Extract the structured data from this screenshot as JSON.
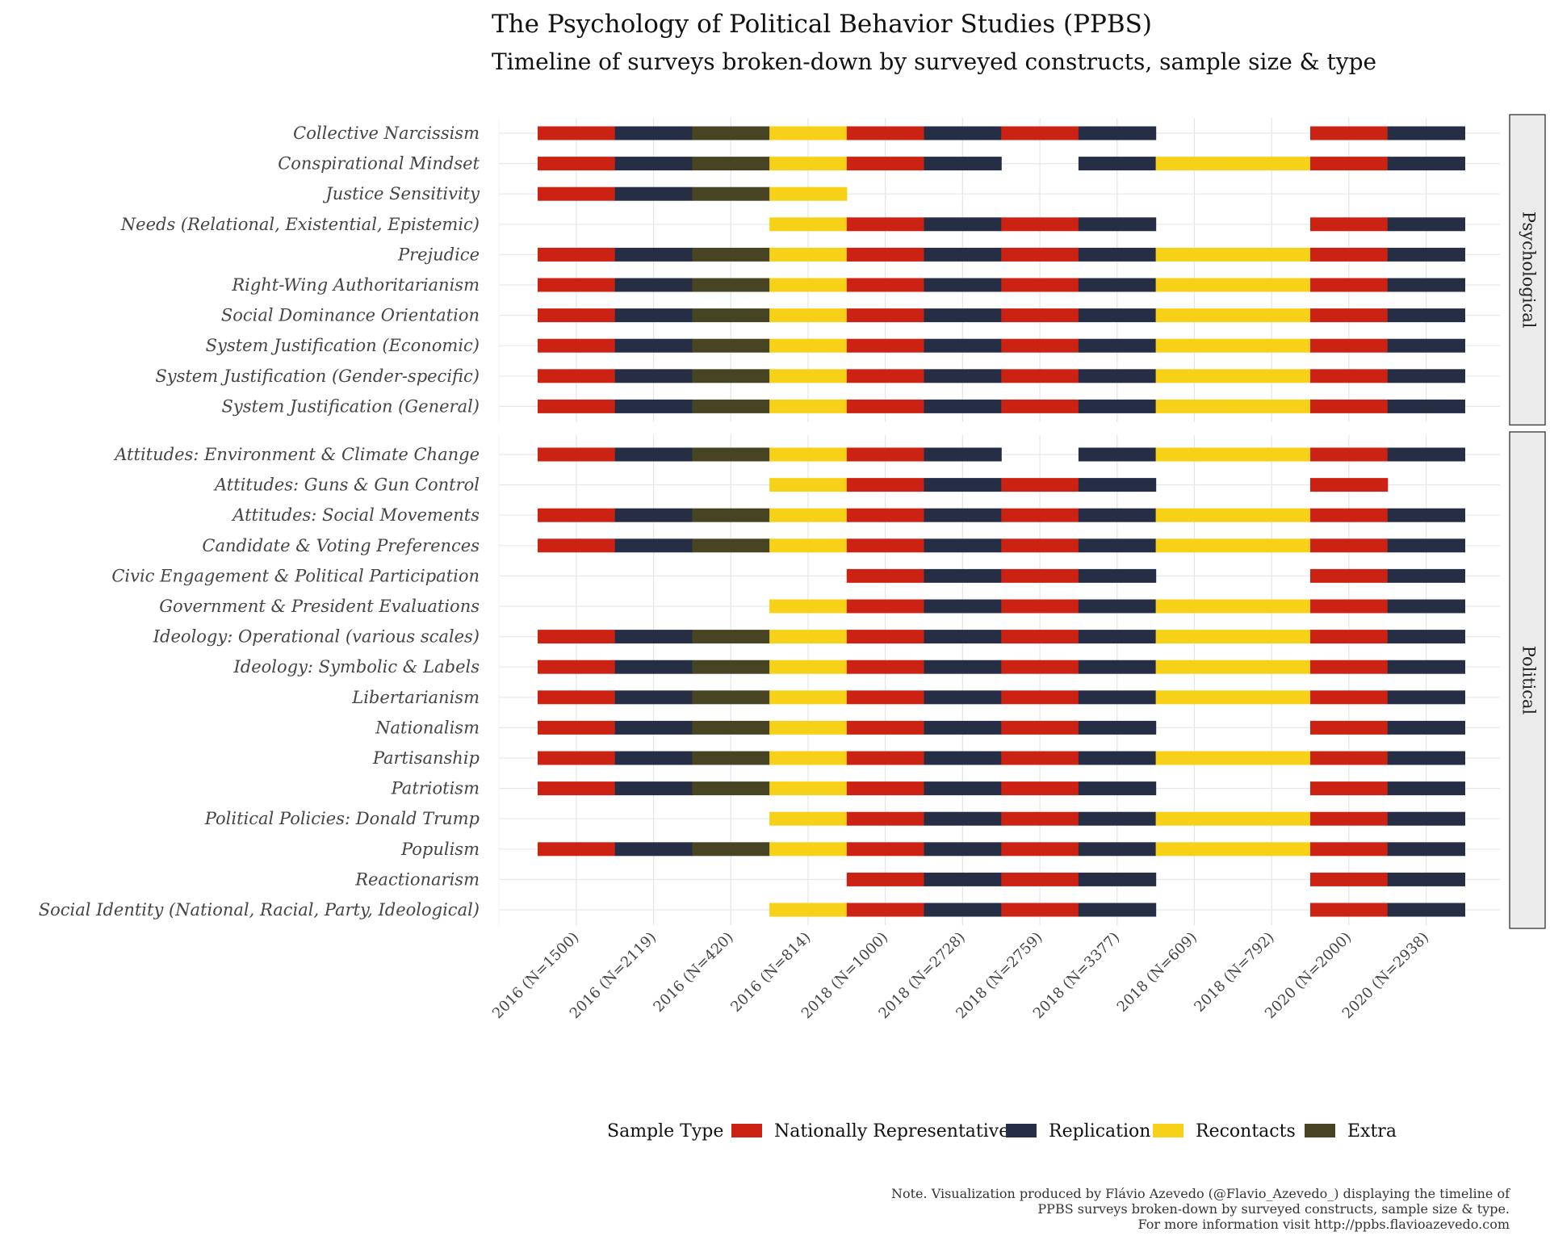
{
  "chart_data": {
    "type": "bar",
    "title": "The Psychology of Political Behavior Studies (PPBS)",
    "subtitle": "Timeline of surveys broken-down by surveyed constructs, sample size & type",
    "categories": [
      "2016 (N=1500)",
      "2016 (N=2119)",
      "2016 (N=420)",
      "2016 (N=814)",
      "2018 (N=1000)",
      "2018 (N=2728)",
      "2018 (N=2759)",
      "2018 (N=3377)",
      "2018 (N=609)",
      "2018 (N=792)",
      "2020 (N=2000)",
      "2020 (N=2938)"
    ],
    "legend": {
      "title": "Sample Type",
      "position": "bottom",
      "items": [
        {
          "label": "Nationally Representative",
          "color": "#cc2214"
        },
        {
          "label": "Replication",
          "color": "#252e45"
        },
        {
          "label": "Recontacts",
          "color": "#f7d117"
        },
        {
          "label": "Extra",
          "color": "#474423"
        }
      ]
    },
    "survey_types": [
      "Nationally Representative",
      "Replication",
      "Extra",
      "Recontacts",
      "Nationally Representative",
      "Replication",
      "Nationally Representative",
      "Replication",
      "Recontacts",
      "Recontacts",
      "Nationally Representative",
      "Replication"
    ],
    "panels": [
      {
        "name": "Psychological",
        "rows": [
          {
            "label": "Collective Narcissism",
            "present": [
              1,
              1,
              1,
              1,
              1,
              1,
              1,
              1,
              0,
              0,
              1,
              1
            ]
          },
          {
            "label": "Conspirational Mindset",
            "present": [
              1,
              1,
              1,
              1,
              1,
              1,
              0,
              1,
              1,
              1,
              1,
              1
            ]
          },
          {
            "label": "Justice Sensitivity",
            "present": [
              1,
              1,
              1,
              1,
              0,
              0,
              0,
              0,
              0,
              0,
              0,
              0
            ]
          },
          {
            "label": "Needs (Relational, Existential, Epistemic)",
            "present": [
              0,
              0,
              0,
              1,
              1,
              1,
              1,
              1,
              0,
              0,
              1,
              1
            ]
          },
          {
            "label": "Prejudice",
            "present": [
              1,
              1,
              1,
              1,
              1,
              1,
              1,
              1,
              1,
              1,
              1,
              1
            ]
          },
          {
            "label": "Right-Wing Authoritarianism",
            "present": [
              1,
              1,
              1,
              1,
              1,
              1,
              1,
              1,
              1,
              1,
              1,
              1
            ]
          },
          {
            "label": "Social Dominance Orientation",
            "present": [
              1,
              1,
              1,
              1,
              1,
              1,
              1,
              1,
              1,
              1,
              1,
              1
            ]
          },
          {
            "label": "System Justification (Economic)",
            "present": [
              1,
              1,
              1,
              1,
              1,
              1,
              1,
              1,
              1,
              1,
              1,
              1
            ]
          },
          {
            "label": "System Justification (Gender-specific)",
            "present": [
              1,
              1,
              1,
              1,
              1,
              1,
              1,
              1,
              1,
              1,
              1,
              1
            ]
          },
          {
            "label": "System Justification (General)",
            "present": [
              1,
              1,
              1,
              1,
              1,
              1,
              1,
              1,
              1,
              1,
              1,
              1
            ]
          }
        ]
      },
      {
        "name": "Political",
        "rows": [
          {
            "label": "Attitudes: Environment & Climate Change",
            "present": [
              1,
              1,
              1,
              1,
              1,
              1,
              0,
              1,
              1,
              1,
              1,
              1
            ]
          },
          {
            "label": "Attitudes: Guns & Gun Control",
            "present": [
              0,
              0,
              0,
              1,
              1,
              1,
              1,
              1,
              0,
              0,
              1,
              0
            ]
          },
          {
            "label": "Attitudes: Social Movements",
            "present": [
              1,
              1,
              1,
              1,
              1,
              1,
              1,
              1,
              1,
              1,
              1,
              1
            ]
          },
          {
            "label": "Candidate & Voting Preferences",
            "present": [
              1,
              1,
              1,
              1,
              1,
              1,
              1,
              1,
              1,
              1,
              1,
              1
            ]
          },
          {
            "label": "Civic Engagement & Political Participation",
            "present": [
              0,
              0,
              0,
              0,
              1,
              1,
              1,
              1,
              0,
              0,
              1,
              1
            ]
          },
          {
            "label": "Government & President Evaluations",
            "present": [
              0,
              0,
              0,
              1,
              1,
              1,
              1,
              1,
              1,
              1,
              1,
              1
            ]
          },
          {
            "label": "Ideology: Operational (various scales)",
            "present": [
              1,
              1,
              1,
              1,
              1,
              1,
              1,
              1,
              1,
              1,
              1,
              1
            ]
          },
          {
            "label": "Ideology: Symbolic & Labels",
            "present": [
              1,
              1,
              1,
              1,
              1,
              1,
              1,
              1,
              1,
              1,
              1,
              1
            ]
          },
          {
            "label": "Libertarianism",
            "present": [
              1,
              1,
              1,
              1,
              1,
              1,
              1,
              1,
              1,
              1,
              1,
              1
            ]
          },
          {
            "label": "Nationalism",
            "present": [
              1,
              1,
              1,
              1,
              1,
              1,
              1,
              1,
              0,
              0,
              1,
              1
            ]
          },
          {
            "label": "Partisanship",
            "present": [
              1,
              1,
              1,
              1,
              1,
              1,
              1,
              1,
              1,
              1,
              1,
              1
            ]
          },
          {
            "label": "Patriotism",
            "present": [
              1,
              1,
              1,
              1,
              1,
              1,
              1,
              1,
              0,
              0,
              1,
              1
            ]
          },
          {
            "label": "Political Policies: Donald Trump",
            "present": [
              0,
              0,
              0,
              1,
              1,
              1,
              1,
              1,
              1,
              1,
              1,
              1
            ]
          },
          {
            "label": "Populism",
            "present": [
              1,
              1,
              1,
              1,
              1,
              1,
              1,
              1,
              1,
              1,
              1,
              1
            ]
          },
          {
            "label": "Reactionarism",
            "present": [
              0,
              0,
              0,
              0,
              1,
              1,
              1,
              1,
              0,
              0,
              1,
              1
            ]
          },
          {
            "label": "Social Identity (National, Racial, Party, Ideological)",
            "present": [
              0,
              0,
              0,
              1,
              1,
              1,
              1,
              1,
              0,
              0,
              1,
              1
            ]
          }
        ]
      }
    ],
    "grid": true
  },
  "note": [
    "Note. Visualization produced by Flávio Azevedo (@Flavio_Azevedo_) displaying the timeline of",
    "PPBS surveys broken-down by surveyed constructs, sample size & type.",
    "For more information visit http://ppbs.flavioazevedo.com"
  ]
}
